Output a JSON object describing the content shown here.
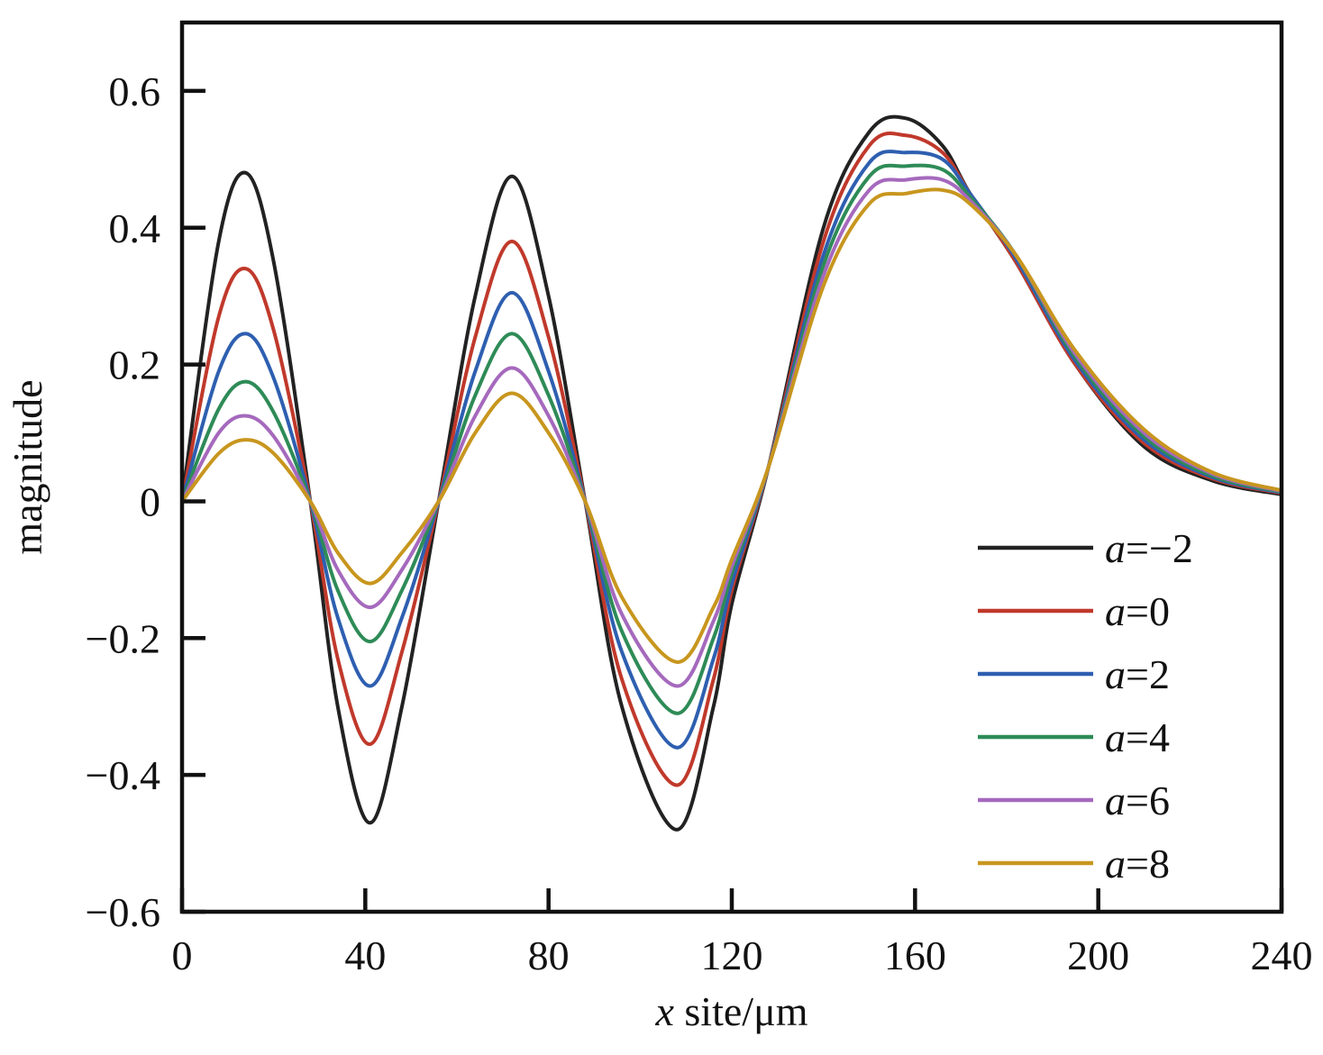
{
  "chart_data": {
    "type": "line",
    "xlabel_var": "x",
    "xlabel_rest": " site/μm",
    "ylabel": "magnitude",
    "xlim": [
      0,
      240
    ],
    "ylim": [
      -0.6,
      0.7
    ],
    "xticks": [
      0,
      40,
      80,
      120,
      160,
      200,
      240
    ],
    "xtick_labels": [
      "0",
      "40",
      "80",
      "120",
      "160",
      "200",
      "240"
    ],
    "yticks": [
      0.6,
      0.4,
      0.2,
      0,
      -0.2,
      -0.4,
      -0.6
    ],
    "ytick_labels": [
      "0.6",
      "0.4",
      "0.2",
      "0",
      "−0.2",
      "−0.4",
      "−0.6"
    ],
    "legend_position": "bottom-right",
    "x": [
      0,
      8,
      14,
      20,
      28,
      34,
      41,
      48,
      56,
      64,
      72,
      80,
      88,
      96,
      108,
      116,
      120,
      128,
      140,
      150,
      158,
      166,
      172,
      182,
      195,
      210,
      225,
      240
    ],
    "series": [
      {
        "name_var": "a",
        "name_rest": "=−2",
        "color": "#222222",
        "values": [
          0,
          0.38,
          0.48,
          0.35,
          0.0,
          -0.3,
          -0.47,
          -0.3,
          0.0,
          0.3,
          0.475,
          0.3,
          0.0,
          -0.3,
          -0.48,
          -0.3,
          -0.15,
          0.05,
          0.4,
          0.54,
          0.56,
          0.52,
          0.45,
          0.35,
          0.2,
          0.08,
          0.03,
          0.01
        ]
      },
      {
        "name_var": "a",
        "name_rest": "=0",
        "color": "#c0392b",
        "values": [
          0,
          0.27,
          0.34,
          0.25,
          0.0,
          -0.23,
          -0.355,
          -0.22,
          0.0,
          0.24,
          0.38,
          0.24,
          0.0,
          -0.26,
          -0.415,
          -0.26,
          -0.13,
          0.05,
          0.38,
          0.52,
          0.535,
          0.51,
          0.45,
          0.35,
          0.2,
          0.085,
          0.033,
          0.012
        ]
      },
      {
        "name_var": "a",
        "name_rest": "=2",
        "color": "#2e5fb0",
        "values": [
          0,
          0.19,
          0.245,
          0.18,
          0.0,
          -0.17,
          -0.27,
          -0.17,
          0.0,
          0.19,
          0.305,
          0.19,
          0.0,
          -0.22,
          -0.36,
          -0.23,
          -0.12,
          0.05,
          0.36,
          0.495,
          0.51,
          0.5,
          0.45,
          0.355,
          0.205,
          0.09,
          0.035,
          0.013
        ]
      },
      {
        "name_var": "a",
        "name_rest": "=4",
        "color": "#2e8b57",
        "values": [
          0,
          0.135,
          0.175,
          0.13,
          0.0,
          -0.13,
          -0.205,
          -0.13,
          0.0,
          0.155,
          0.245,
          0.155,
          0.0,
          -0.19,
          -0.31,
          -0.2,
          -0.105,
          0.05,
          0.345,
          0.475,
          0.49,
          0.485,
          0.445,
          0.36,
          0.21,
          0.095,
          0.037,
          0.014
        ]
      },
      {
        "name_var": "a",
        "name_rest": "=6",
        "color": "#a569bd",
        "values": [
          0,
          0.1,
          0.125,
          0.095,
          0.0,
          -0.1,
          -0.155,
          -0.1,
          0.0,
          0.125,
          0.195,
          0.125,
          0.0,
          -0.165,
          -0.27,
          -0.175,
          -0.095,
          0.05,
          0.33,
          0.455,
          0.47,
          0.47,
          0.44,
          0.36,
          0.215,
          0.1,
          0.04,
          0.015
        ]
      },
      {
        "name_var": "a",
        "name_rest": "=8",
        "color": "#c8961e",
        "values": [
          0,
          0.07,
          0.09,
          0.07,
          0.0,
          -0.075,
          -0.12,
          -0.075,
          0.0,
          0.1,
          0.158,
          0.1,
          0.0,
          -0.14,
          -0.235,
          -0.155,
          -0.085,
          0.05,
          0.315,
          0.435,
          0.45,
          0.455,
          0.435,
          0.36,
          0.22,
          0.105,
          0.042,
          0.016
        ]
      }
    ]
  }
}
